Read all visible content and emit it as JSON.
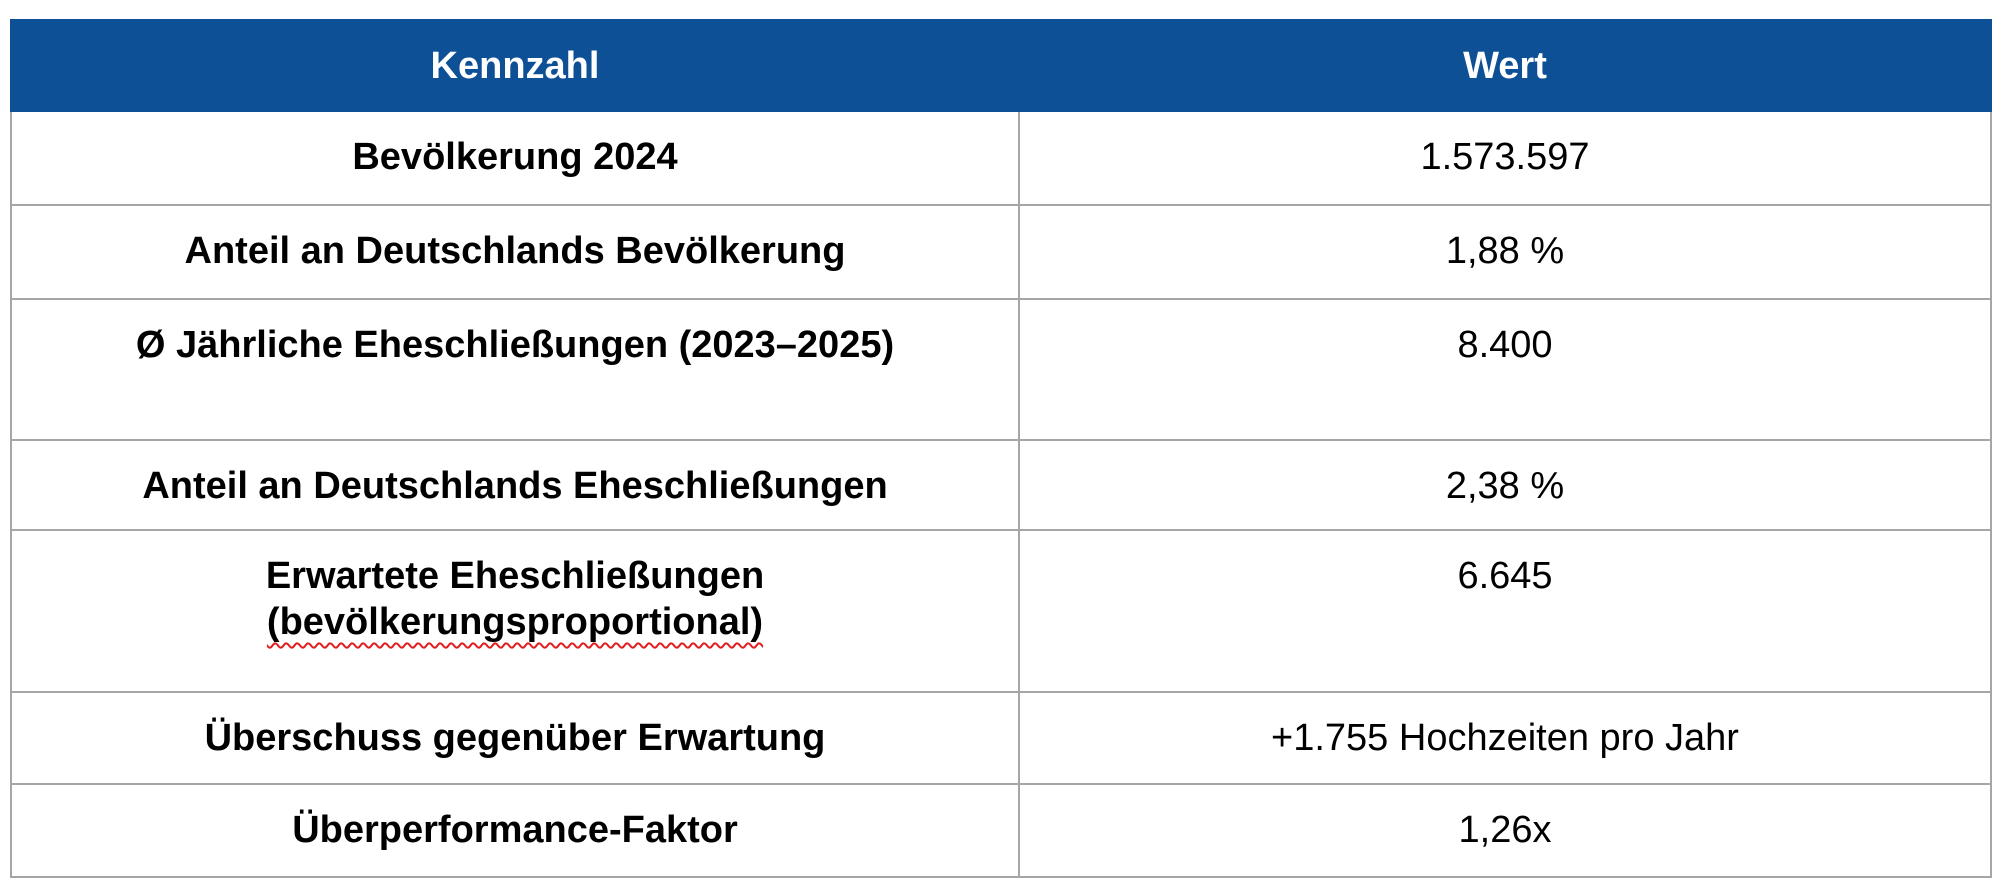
{
  "table": {
    "header": [
      "Kennzahl",
      "Wert"
    ],
    "rows": [
      [
        "Bevölkerung 2024",
        "1.573.597"
      ],
      [
        "Anteil an Deutschlands Bevölkerung",
        "1,88 %"
      ],
      [
        "Ø Jährliche Eheschließungen (2023–2025)",
        "8.400"
      ],
      [
        "Anteil an Deutschlands Eheschließungen",
        "2,38 %"
      ],
      [
        [
          "Erwartete Eheschließungen",
          "(bevölkerungsproportional)"
        ],
        "6.645"
      ],
      [
        "Überschuss gegenüber Erwartung",
        "+1.755 Hochzeiten pro Jahr"
      ],
      [
        "Überperformance-Faktor",
        "1,26x"
      ]
    ]
  }
}
